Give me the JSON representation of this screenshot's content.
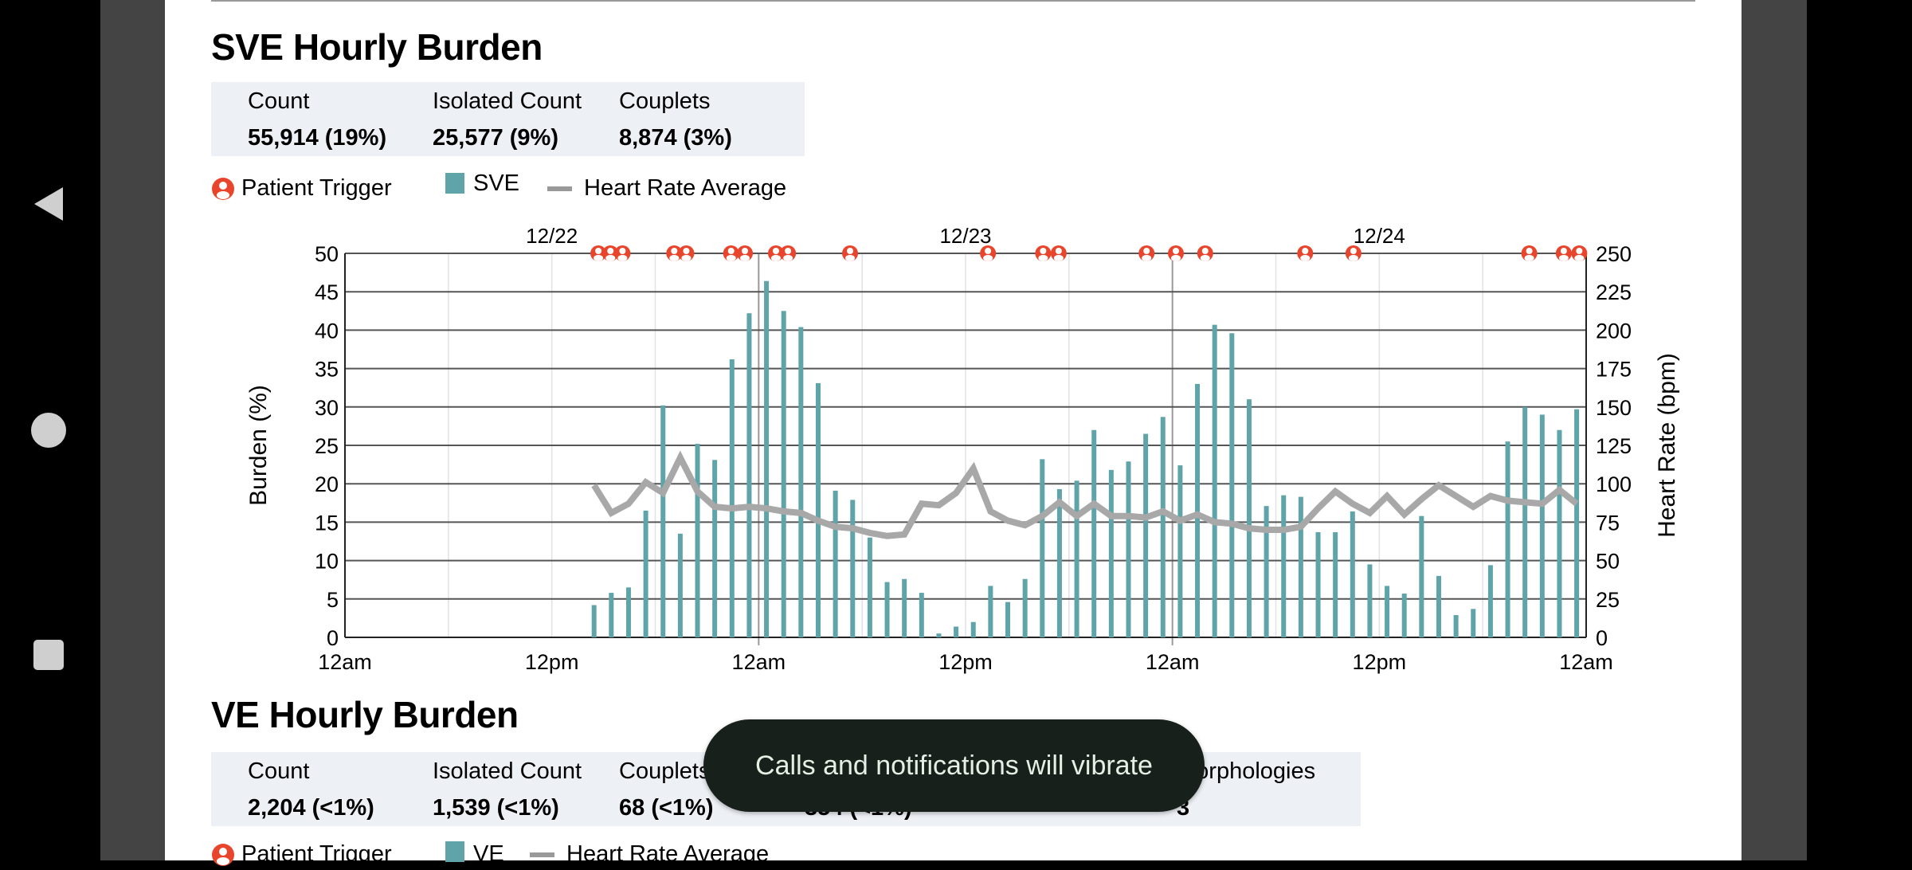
{
  "colors": {
    "bar": "#5fa4a8",
    "heart_rate": "#a8a8a8",
    "trigger": "#e8452c",
    "stats_bg": "#edf0f5"
  },
  "nav": {
    "back_icon": "triangle-left",
    "home_icon": "circle",
    "recents_icon": "square"
  },
  "sve": {
    "title": "SVE Hourly Burden",
    "stats": [
      {
        "label": "Count",
        "value": "55,914 (19%)"
      },
      {
        "label": "Isolated Count",
        "value": "25,577 (9%)"
      },
      {
        "label": "Couplets",
        "value": "8,874 (3%)"
      }
    ],
    "legend": {
      "trigger": "Patient Trigger",
      "bars": "SVE",
      "line": "Heart Rate Average"
    }
  },
  "chart_data": {
    "type": "bar",
    "title": "SVE Hourly Burden",
    "ylabel": "Burden (%)",
    "y2label": "Heart Rate (bpm)",
    "ylim": [
      0,
      50
    ],
    "y2lim": [
      0,
      250
    ],
    "yticks": [
      "0",
      "5",
      "10",
      "15",
      "20",
      "25",
      "30",
      "35",
      "40",
      "45",
      "50"
    ],
    "y2ticks": [
      "0",
      "25",
      "50",
      "75",
      "100",
      "125",
      "150",
      "175",
      "200",
      "225",
      "250"
    ],
    "xlim_hours": [
      0,
      72
    ],
    "xticks": [
      "12am",
      "12pm",
      "12am",
      "12pm",
      "12am",
      "12pm",
      "12am"
    ],
    "date_labels": [
      {
        "label": "12/22",
        "hour": 12
      },
      {
        "label": "12/23",
        "hour": 36
      },
      {
        "label": "12/24",
        "hour": 60
      }
    ],
    "first_bar_hour": 14.45,
    "series": [
      {
        "name": "SVE",
        "type": "bar",
        "values": [
          4.2,
          5.8,
          6.5,
          16.5,
          30.2,
          13.5,
          25.2,
          23.1,
          36.2,
          42.2,
          46.4,
          42.5,
          40.4,
          33.1,
          19.1,
          17.9,
          13,
          7.2,
          7.6,
          5.8,
          0.5,
          1.4,
          2,
          6.7,
          4.6,
          7.6,
          23.2,
          19.3,
          20.4,
          27,
          21.8,
          22.9,
          26.5,
          28.7,
          22.4,
          33,
          40.7,
          39.6,
          31,
          17.1,
          18.5,
          18.3,
          13.7,
          13.7,
          16.4,
          9.5,
          6.7,
          5.7,
          15.8,
          8,
          2.9,
          3.7,
          9.4,
          25.5,
          30,
          29,
          27,
          29.7
        ]
      },
      {
        "name": "Heart Rate Average",
        "type": "line",
        "axis": "right",
        "values": [
          99,
          81,
          87,
          101,
          94,
          117,
          95,
          85,
          84,
          85,
          84,
          82,
          81,
          76,
          72,
          71,
          68,
          66,
          67,
          87,
          86,
          94,
          110,
          82,
          76,
          73,
          79,
          88,
          79,
          87,
          79,
          79,
          78,
          82,
          76,
          80,
          75,
          74,
          71,
          70,
          70,
          72,
          84,
          95,
          87,
          81,
          92,
          80,
          90,
          99,
          92,
          85,
          92,
          89,
          88,
          87,
          96,
          87
        ]
      }
    ],
    "patient_trigger_hours": [
      14.7,
      15.4,
      16.1,
      19.1,
      19.8,
      22.4,
      23.2,
      25.0,
      25.7,
      29.3,
      37.3,
      40.5,
      41.4,
      46.5,
      48.2,
      49.9,
      55.7,
      58.5,
      68.7,
      70.7,
      71.6
    ],
    "grid": true
  },
  "ve": {
    "title": "VE Hourly Burden",
    "stats": [
      {
        "label": "Count",
        "value": "2,204 (<1%)"
      },
      {
        "label": "Isolated Count",
        "value": "1,539 (<1%)"
      },
      {
        "label": "Couplets",
        "value": "68 (<1%)"
      },
      {
        "label": "",
        "value": "354 (<1%)"
      },
      {
        "label": "Morphologies",
        "value": "3"
      }
    ],
    "legend": {
      "trigger": "Patient Trigger",
      "bars": "VE",
      "line": "Heart Rate Average"
    }
  },
  "toast": {
    "message": "Calls and notifications will vibrate"
  }
}
